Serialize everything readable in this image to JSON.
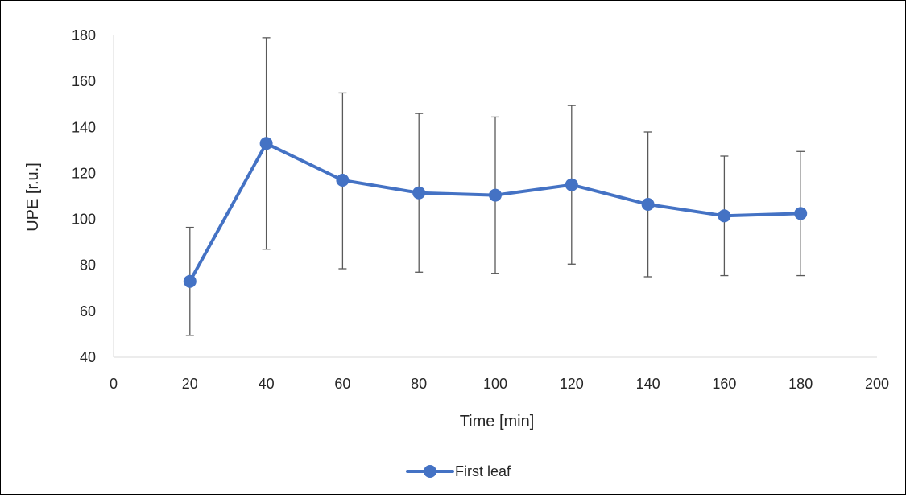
{
  "chart_data": {
    "type": "line",
    "title": "",
    "xlabel": "Time [min]",
    "ylabel": "UPE [r.u.]",
    "xlim": [
      0,
      200
    ],
    "ylim": [
      40,
      180
    ],
    "x_ticks": [
      0,
      20,
      40,
      60,
      80,
      100,
      120,
      140,
      160,
      180,
      200
    ],
    "y_ticks": [
      40,
      60,
      80,
      100,
      120,
      140,
      160,
      180
    ],
    "x_tick_labels": [
      "0",
      "20",
      "40",
      "60",
      "80",
      "100",
      "120",
      "140",
      "160",
      "180",
      "200"
    ],
    "y_tick_labels": [
      "40",
      "60",
      "80",
      "100",
      "120",
      "140",
      "160",
      "180"
    ],
    "grid": false,
    "legend_position": "bottom",
    "series": [
      {
        "name": "First leaf",
        "color": "#4472C4",
        "marker": "circle",
        "x": [
          20,
          40,
          60,
          80,
          100,
          120,
          140,
          160,
          180
        ],
        "y": [
          73,
          133,
          117,
          111.5,
          110.5,
          115,
          106.5,
          101.5,
          102.5
        ],
        "error_upper": [
          96.5,
          179,
          155,
          146,
          144.5,
          149.5,
          138,
          127.5,
          129.5
        ],
        "error_lower": [
          49.5,
          87,
          78.5,
          77,
          76.5,
          80.5,
          75,
          75.5,
          75.5
        ]
      }
    ],
    "error_bar_color": "#595959"
  }
}
